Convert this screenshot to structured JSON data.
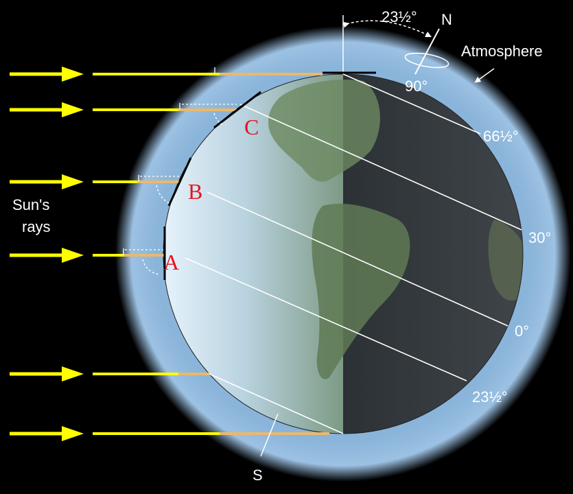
{
  "labels": {
    "sun_rays_line1": "Sun's",
    "sun_rays_line2": "rays",
    "atmosphere": "Atmosphere",
    "north": "N",
    "south": "S",
    "tilt": "23½°",
    "lat_90": "90°",
    "lat_66": "66½°",
    "lat_30": "30°",
    "lat_0": "0°",
    "lat_23": "23½°"
  },
  "points": {
    "a": "A",
    "b": "B",
    "c": "C"
  },
  "colors": {
    "background": "#000000",
    "atmosphere": "#8ab4d9",
    "day_side": "#c9dff0",
    "night_side": "#3a3f44",
    "ray_arrow": "#ffff00",
    "ray_beam": "#e9b96e",
    "latitude_line": "#ffffff",
    "point_label": "#e8141e"
  },
  "icons": {
    "arrow": "ray-arrow-icon",
    "curved_arrow": "rotation-arrow-icon"
  }
}
